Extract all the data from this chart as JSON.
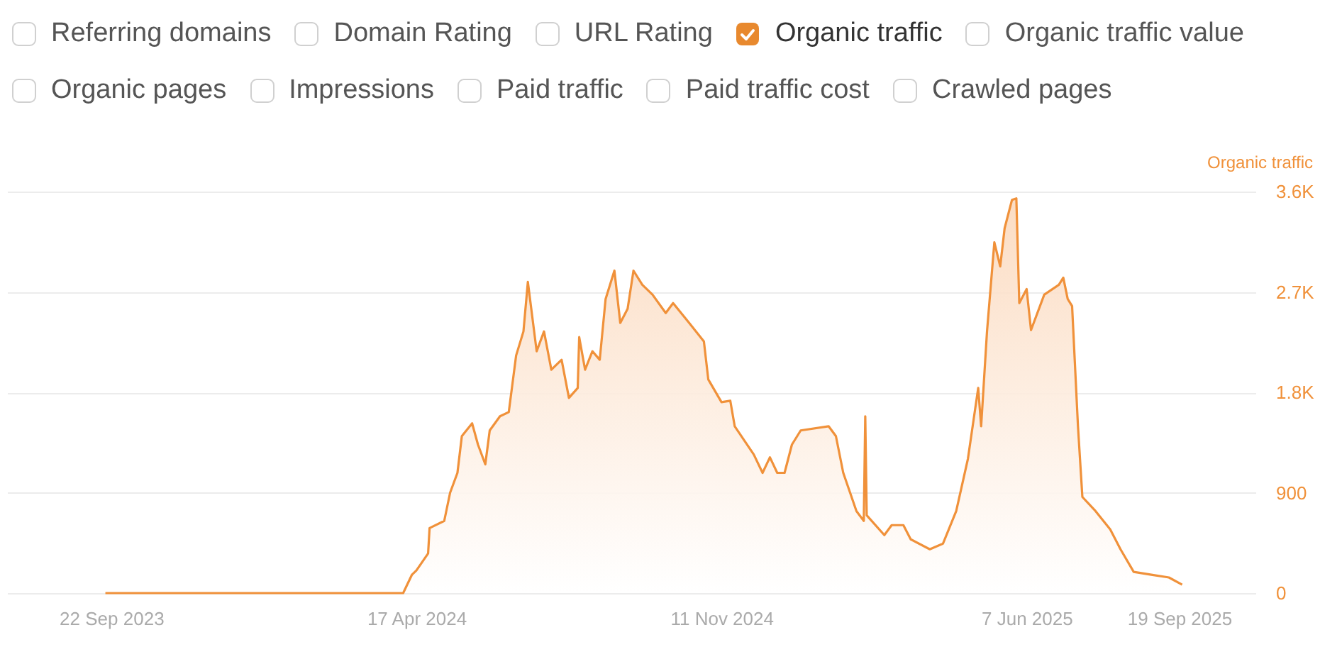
{
  "chart_data": {
    "type": "area",
    "ylabel": "Organic traffic",
    "annotations": [
      "Referring domains",
      "Domain Rating",
      "URL Rating",
      "Organic traffic",
      "Organic traffic value",
      "Organic pages",
      "Impressions",
      "Paid traffic",
      "Paid traffic cost",
      "Crawled pages"
    ],
    "x": [
      "2023-09-18",
      "2024-04-08",
      "2024-04-14",
      "2024-04-17",
      "2024-04-25",
      "2024-04-26",
      "2024-05-06",
      "2024-05-10",
      "2024-05-15",
      "2024-05-18",
      "2024-05-25",
      "2024-05-29",
      "2024-06-03",
      "2024-06-06",
      "2024-06-13",
      "2024-06-19",
      "2024-06-24",
      "2024-06-29",
      "2024-07-02",
      "2024-07-08",
      "2024-07-13",
      "2024-07-18",
      "2024-07-25",
      "2024-07-30",
      "2024-08-05",
      "2024-08-06",
      "2024-08-10",
      "2024-08-15",
      "2024-08-20",
      "2024-08-24",
      "2024-08-30",
      "2024-09-03",
      "2024-09-08",
      "2024-09-12",
      "2024-09-18",
      "2024-09-25",
      "2024-10-04",
      "2024-10-09",
      "2024-10-20",
      "2024-10-30",
      "2024-11-02",
      "2024-11-11",
      "2024-11-17",
      "2024-11-20",
      "2024-12-03",
      "2024-12-09",
      "2024-12-14",
      "2024-12-19",
      "2024-12-24",
      "2024-12-29",
      "2025-01-04",
      "2025-01-23",
      "2025-01-28",
      "2025-02-02",
      "2025-02-11",
      "2025-02-16",
      "2025-02-17",
      "2025-02-18",
      "2025-03-02",
      "2025-03-07",
      "2025-03-15",
      "2025-03-20",
      "2025-04-02",
      "2025-04-11",
      "2025-04-20",
      "2025-04-28",
      "2025-05-05",
      "2025-05-07",
      "2025-05-11",
      "2025-05-16",
      "2025-05-20",
      "2025-05-23",
      "2025-05-28",
      "2025-05-31",
      "2025-06-02",
      "2025-06-07",
      "2025-06-10",
      "2025-06-19",
      "2025-06-29",
      "2025-07-02",
      "2025-07-05",
      "2025-07-08",
      "2025-07-12",
      "2025-07-15",
      "2025-07-24",
      "2025-08-03",
      "2025-08-10",
      "2025-08-19",
      "2025-08-31",
      "2025-09-12",
      "2025-09-21"
    ],
    "series": [
      {
        "color": "#f0913a",
        "values": [
          0,
          0,
          165,
          203,
          355,
          583,
          647,
          900,
          1078,
          1407,
          1522,
          1331,
          1154,
          1458,
          1585,
          1623,
          2130,
          2346,
          2790,
          2168,
          2346,
          2003,
          2092,
          1750,
          1839,
          2295,
          2003,
          2168,
          2092,
          2637,
          2891,
          2422,
          2549,
          2891,
          2764,
          2675,
          2511,
          2600,
          2422,
          2257,
          1915,
          1712,
          1724,
          1496,
          1243,
          1078,
          1217,
          1078,
          1078,
          1331,
          1458,
          1496,
          1407,
          1078,
          735,
          647,
          1585,
          697,
          520,
          609,
          609,
          482,
          393,
          444,
          735,
          1205,
          1839,
          1496,
          2346,
          3145,
          2929,
          3271,
          3525,
          3538,
          2600,
          2726,
          2358,
          2675,
          2764,
          2828,
          2637,
          2574,
          1496,
          862,
          735,
          571,
          393,
          190,
          165,
          140,
          76
        ]
      }
    ],
    "xlim": [
      "2023-07-13",
      "2025-11-10"
    ],
    "xticks": [
      {
        "value": "2023-09-22",
        "label": "22 Sep 2023"
      },
      {
        "value": "2024-04-17",
        "label": "17 Apr 2024"
      },
      {
        "value": "2024-11-11",
        "label": "11 Nov 2024"
      },
      {
        "value": "2025-06-07",
        "label": "7 Jun 2025"
      },
      {
        "value": "2025-09-19",
        "label": "19 Sep 2025"
      }
    ],
    "ylim": [
      0,
      3600
    ],
    "yticks": [
      {
        "value": 0,
        "label": "0"
      },
      {
        "value": 900,
        "label": "900"
      },
      {
        "value": 1800,
        "label": "1.8K"
      },
      {
        "value": 2700,
        "label": "2.7K"
      },
      {
        "value": 3600,
        "label": "3.6K"
      }
    ],
    "grid": "y"
  }
}
